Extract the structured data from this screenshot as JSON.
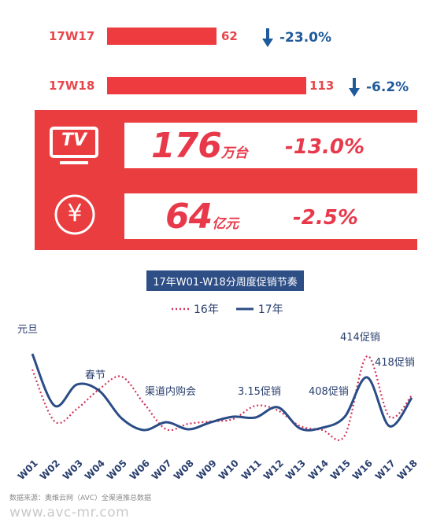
{
  "weeks": [
    {
      "label": "17W17",
      "value": "62",
      "pct": "-23.0%"
    },
    {
      "label": "17W18",
      "value": "113",
      "pct": "-6.2%"
    }
  ],
  "panel": {
    "tv_icon_text": "TV",
    "yen_icon_text": "¥",
    "volume_number": "176",
    "volume_unit": "万台",
    "volume_pct": "-13.0%",
    "revenue_number": "64",
    "revenue_unit": "亿元",
    "revenue_pct": "-2.5%"
  },
  "colors": {
    "accent_red": "#ea3d3f",
    "navy": "#2e4e86",
    "series_16": "#d0335a",
    "series_17": "#2a4c86"
  },
  "chart_data": {
    "type": "line",
    "title": "17年W01-W18分周度促销节奏",
    "categories": [
      "W01",
      "W02",
      "W03",
      "W04",
      "W05",
      "W06",
      "W07",
      "W08",
      "W09",
      "W10",
      "W11",
      "W12",
      "W13",
      "W14",
      "W15",
      "W16",
      "W17",
      "W18"
    ],
    "series": [
      {
        "name": "16年",
        "style": "dotted",
        "values": [
          90,
          24,
          40,
          65,
          81,
          47,
          14,
          21,
          24,
          27,
          44,
          38,
          18,
          13,
          6,
          107,
          30,
          57
        ]
      },
      {
        "name": "17年",
        "style": "solid",
        "values": [
          110,
          44,
          71,
          63,
          28,
          13,
          23,
          14,
          23,
          30,
          29,
          42,
          15,
          16,
          30,
          80,
          18,
          54
        ]
      }
    ],
    "annotations": [
      {
        "text": "元旦",
        "week": "W01"
      },
      {
        "text": "春节",
        "week": "W04"
      },
      {
        "text": "渠道内购会",
        "week": "W07"
      },
      {
        "text": "3.15促销",
        "week": "W11"
      },
      {
        "text": "408促销",
        "week": "W14"
      },
      {
        "text": "414促销",
        "week": "W16"
      },
      {
        "text": "418促销",
        "week": "W17"
      }
    ],
    "ylim": [
      0,
      120
    ],
    "legend_position": "top-center",
    "grid": false
  },
  "footnote": "数据来源：奥维云网（AVC）全渠道推总数据",
  "watermark": "www.avc-mr.com"
}
